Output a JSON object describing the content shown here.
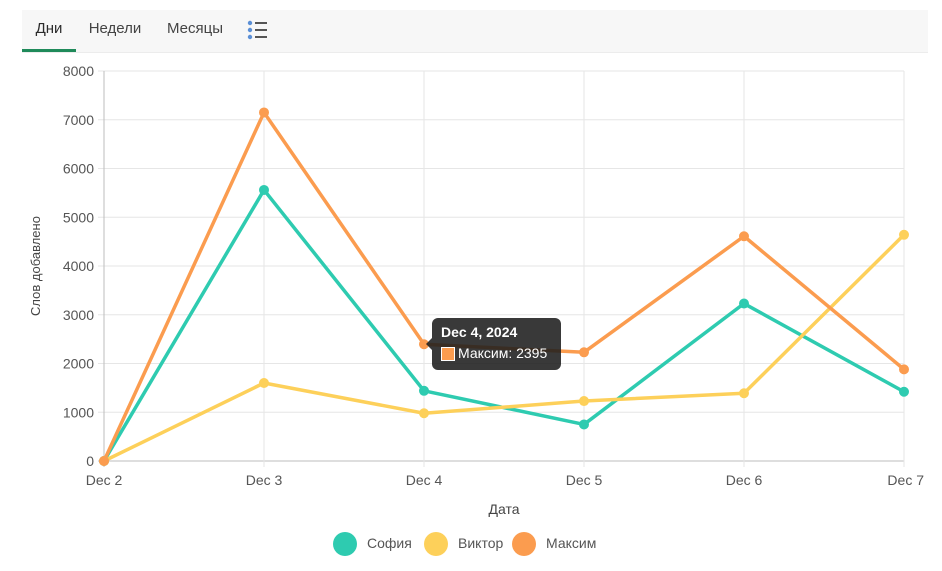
{
  "tabs": [
    {
      "label": "Дни",
      "active": true
    },
    {
      "label": "Недели",
      "active": false
    },
    {
      "label": "Месяцы",
      "active": false
    }
  ],
  "list_toggle_icon": "list-icon",
  "chart_data": {
    "type": "line",
    "categories": [
      "Dec 2",
      "Dec 3",
      "Dec 4",
      "Dec 5",
      "Dec 6",
      "Dec 7"
    ],
    "xlabel": "Дата",
    "ylabel": "Слов добавлено",
    "ylim": [
      0,
      8000
    ],
    "yticks": [
      "0",
      "1000",
      "2000",
      "3000",
      "4000",
      "5000",
      "6000",
      "7000",
      "8000"
    ],
    "grid": true,
    "legend_position": "bottom",
    "series": [
      {
        "name": "София",
        "color": "#2ecbb0",
        "values": [
          0,
          5560,
          1440,
          750,
          3230,
          1420
        ]
      },
      {
        "name": "Виктор",
        "color": "#fdd05a",
        "values": [
          0,
          1600,
          980,
          1230,
          1390,
          4640
        ]
      },
      {
        "name": "Максим",
        "color": "#fb9c4f",
        "values": [
          0,
          7150,
          2395,
          2230,
          4610,
          1880
        ]
      }
    ],
    "tooltip": {
      "title": "Dec 4, 2024",
      "label": "Максим: 2395"
    }
  }
}
